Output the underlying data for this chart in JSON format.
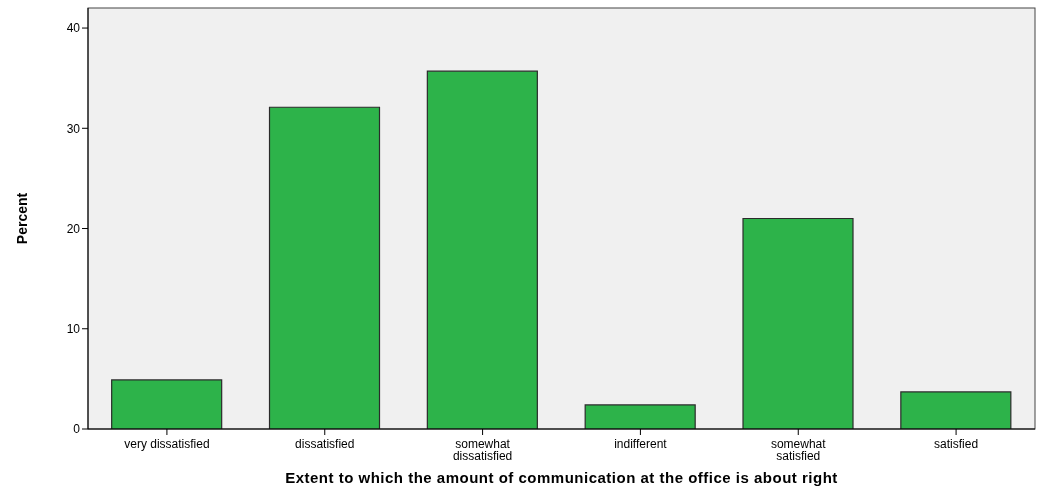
{
  "chart_data": {
    "type": "bar",
    "xlabel": "Extent to which the amount of communication at the office is about right",
    "ylabel": "Percent",
    "categories": [
      "very dissatisfied",
      "dissatisfied",
      "somewhat dissatisfied",
      "indifferent",
      "somewhat satisfied",
      "satisfied"
    ],
    "values": [
      4.9,
      32.1,
      35.7,
      2.4,
      21.0,
      3.7
    ],
    "color": "#2db34a",
    "ylim": [
      0,
      42
    ],
    "yticks": [
      0,
      10,
      20,
      30,
      40
    ]
  }
}
